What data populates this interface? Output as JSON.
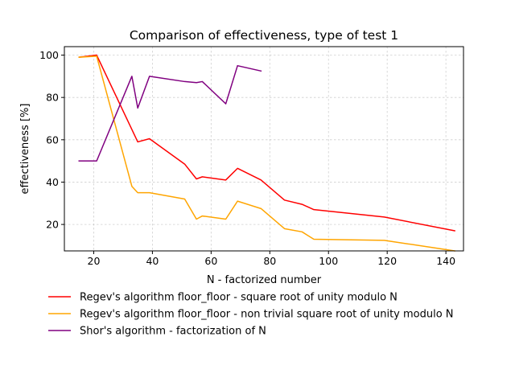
{
  "chart_data": {
    "type": "line",
    "title": "Comparison of effectiveness, type of test 1",
    "xlabel": "N - factorized number",
    "ylabel": "effectiveness [%]",
    "xlim": [
      10,
      146
    ],
    "ylim": [
      7.5,
      104
    ],
    "xticks": [
      20,
      40,
      60,
      80,
      100,
      120,
      140
    ],
    "yticks": [
      20,
      40,
      60,
      80,
      100
    ],
    "grid": true,
    "legend_placement": "below-left",
    "series": [
      {
        "name": "Regev's algorithm floor_floor - square root of unity modulo N",
        "color": "#ff0000",
        "x": [
          15,
          21,
          35,
          39,
          51,
          55,
          57,
          65,
          69,
          77,
          85,
          91,
          95,
          119,
          143
        ],
        "y": [
          99,
          100,
          59,
          60.5,
          48.5,
          41.5,
          42.5,
          41,
          46.5,
          41,
          31.5,
          29.5,
          27,
          23.5,
          17
        ]
      },
      {
        "name": "Regev's algorithm floor_floor - non trivial square root of unity modulo N",
        "color": "#ffa500",
        "x": [
          15,
          21,
          33,
          35,
          39,
          51,
          55,
          57,
          65,
          69,
          77,
          85,
          91,
          95,
          119,
          143
        ],
        "y": [
          99,
          99.5,
          38,
          35,
          35,
          32,
          22.5,
          24,
          22.5,
          31,
          27.5,
          18,
          16.5,
          13,
          12.5,
          7.5
        ]
      },
      {
        "name": "Shor's algorithm - factorization of N",
        "color": "#800080",
        "x": [
          15,
          21,
          33,
          35,
          39,
          51,
          55,
          57,
          65,
          69,
          77
        ],
        "y": [
          50,
          50,
          90,
          75,
          90,
          87.5,
          87,
          87.5,
          77,
          95,
          92.5
        ]
      }
    ]
  }
}
